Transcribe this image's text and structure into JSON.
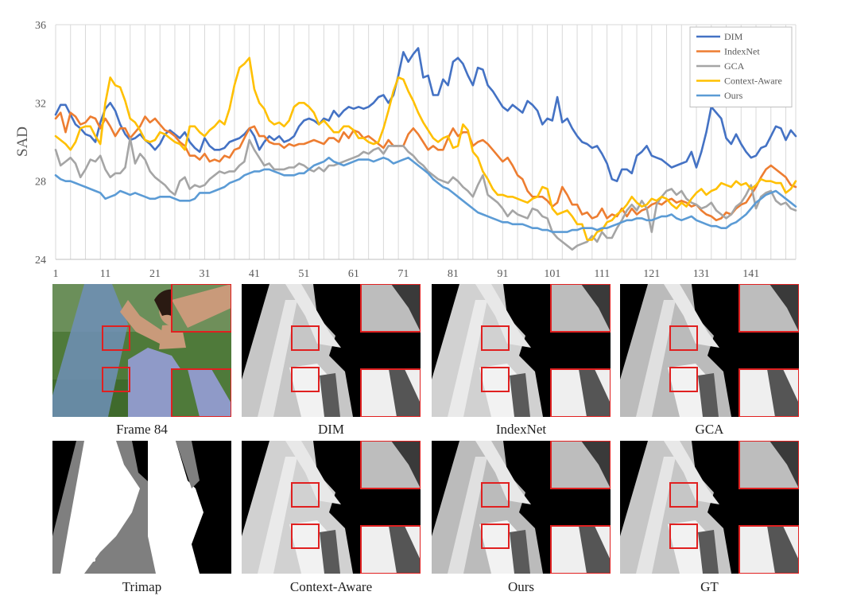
{
  "chart_data": {
    "type": "line",
    "ylabel": "SAD",
    "xlabel": "",
    "ylim": [
      24,
      36
    ],
    "y_ticks": [
      "24",
      "28",
      "32",
      "36"
    ],
    "x_ticks": [
      "1",
      "11",
      "21",
      "31",
      "41",
      "51",
      "61",
      "71",
      "81",
      "91",
      "101",
      "111",
      "121",
      "131",
      "141"
    ],
    "x_start": 1,
    "x_end": 150,
    "grid": "vertical",
    "legend_position": "top-right",
    "series": [
      {
        "name": "DIM",
        "color": "#4472C4",
        "values": [
          31.4,
          31.9,
          31.9,
          31.4,
          30.9,
          30.7,
          30.4,
          30.3,
          30.0,
          31.0,
          31.7,
          32.0,
          31.6,
          30.9,
          30.4,
          30.1,
          30.2,
          30.4,
          30.1,
          29.9,
          29.6,
          29.9,
          30.4,
          30.6,
          30.4,
          30.2,
          30.5,
          30.0,
          29.7,
          29.5,
          30.2,
          29.8,
          29.6,
          29.6,
          29.7,
          30.0,
          30.1,
          30.2,
          30.4,
          30.7,
          30.3,
          29.6,
          30.0,
          30.3,
          30.1,
          30.3,
          30.0,
          30.1,
          30.3,
          30.8,
          31.1,
          31.2,
          31.1,
          30.9,
          31.2,
          31.1,
          31.6,
          31.3,
          31.6,
          31.8,
          31.7,
          31.8,
          31.7,
          31.8,
          32.0,
          32.3,
          32.4,
          32.0,
          32.4,
          33.4,
          34.6,
          34.1,
          34.5,
          34.8,
          33.3,
          33.4,
          32.4,
          32.4,
          33.2,
          32.9,
          34.1,
          34.3,
          34.0,
          33.4,
          32.9,
          33.8,
          33.7,
          32.9,
          32.6,
          32.2,
          31.8,
          31.6,
          31.9,
          31.7,
          31.5,
          32.1,
          31.9,
          31.6,
          30.9,
          31.2,
          31.1,
          32.3,
          31.0,
          31.2,
          30.7,
          30.3,
          30.0,
          29.9,
          29.7,
          29.8,
          29.4,
          28.9,
          28.1,
          28.0,
          28.6,
          28.6,
          28.4,
          29.3,
          29.5,
          29.8,
          29.3,
          29.2,
          29.1,
          28.9,
          28.7,
          28.8,
          28.9,
          29.0,
          29.5,
          28.7,
          29.5,
          30.5,
          31.8,
          31.5,
          31.2,
          30.2,
          29.9,
          30.4,
          29.9,
          29.5,
          29.2,
          29.3,
          29.7,
          29.8,
          30.3,
          30.8,
          30.7,
          30.1,
          30.6,
          30.3
        ]
      },
      {
        "name": "IndexNet",
        "color": "#ED7D31",
        "values": [
          31.2,
          31.5,
          30.5,
          31.5,
          31.3,
          30.9,
          31.0,
          31.3,
          31.2,
          30.7,
          31.2,
          30.8,
          30.3,
          30.7,
          30.7,
          30.2,
          30.5,
          30.8,
          31.3,
          31.0,
          31.2,
          30.9,
          30.6,
          30.5,
          30.3,
          30.0,
          29.8,
          29.3,
          29.3,
          29.1,
          29.4,
          29.0,
          29.1,
          29.0,
          29.3,
          29.2,
          29.6,
          29.7,
          30.2,
          30.7,
          30.8,
          30.3,
          30.3,
          30.0,
          29.9,
          29.9,
          29.7,
          29.9,
          29.8,
          29.9,
          29.9,
          30.0,
          30.1,
          30.0,
          29.9,
          30.2,
          30.2,
          30.0,
          30.5,
          30.2,
          30.6,
          30.5,
          30.2,
          30.3,
          30.1,
          29.9,
          29.7,
          30.1,
          29.8,
          29.8,
          29.8,
          30.4,
          30.7,
          30.4,
          30.0,
          29.6,
          29.8,
          29.6,
          29.6,
          30.2,
          30.7,
          30.3,
          30.5,
          30.5,
          29.8,
          30.0,
          30.1,
          29.9,
          29.6,
          29.3,
          29.0,
          29.2,
          28.8,
          28.3,
          28.1,
          27.5,
          27.2,
          27.2,
          27.2,
          27.0,
          26.7,
          26.9,
          27.7,
          27.3,
          26.8,
          26.8,
          26.3,
          26.4,
          26.1,
          26.2,
          26.6,
          26.1,
          26.3,
          26.2,
          26.6,
          26.2,
          26.6,
          26.3,
          26.5,
          26.6,
          26.8,
          26.9,
          26.8,
          27.0,
          27.1,
          26.9,
          27.0,
          26.9,
          26.7,
          26.8,
          26.5,
          26.3,
          26.2,
          26.0,
          26.1,
          26.4,
          26.3,
          26.6,
          26.8,
          26.9,
          27.3,
          27.7,
          28.2,
          28.6,
          28.8,
          28.6,
          28.4,
          28.2,
          27.8,
          27.7
        ]
      },
      {
        "name": "GCA",
        "color": "#A5A5A5",
        "values": [
          29.6,
          28.8,
          29.0,
          29.2,
          28.9,
          28.2,
          28.6,
          29.1,
          29.0,
          29.3,
          28.6,
          28.2,
          28.4,
          28.4,
          28.7,
          30.2,
          28.9,
          29.4,
          29.1,
          28.5,
          28.2,
          28.0,
          27.8,
          27.5,
          27.3,
          28.0,
          28.2,
          27.6,
          27.8,
          27.7,
          27.8,
          28.1,
          28.3,
          28.5,
          28.4,
          28.5,
          28.5,
          28.8,
          29.0,
          30.1,
          29.6,
          29.2,
          28.8,
          28.9,
          28.6,
          28.6,
          28.6,
          28.7,
          28.7,
          28.9,
          28.8,
          28.6,
          28.5,
          28.7,
          28.5,
          28.8,
          28.8,
          28.9,
          29.0,
          29.1,
          29.2,
          29.3,
          29.5,
          29.4,
          29.6,
          29.7,
          29.4,
          29.8,
          29.8,
          29.8,
          29.8,
          29.5,
          29.3,
          29.0,
          28.8,
          28.5,
          28.3,
          28.1,
          28.0,
          27.9,
          28.2,
          28.0,
          27.7,
          27.5,
          27.2,
          27.8,
          28.3,
          27.3,
          27.1,
          26.9,
          26.6,
          26.2,
          26.5,
          26.3,
          26.2,
          26.1,
          26.6,
          26.5,
          26.2,
          26.1,
          25.4,
          25.1,
          24.9,
          24.7,
          24.5,
          24.7,
          24.8,
          24.9,
          25.2,
          24.9,
          25.4,
          25.1,
          25.1,
          25.6,
          26.0,
          26.5,
          26.8,
          26.5,
          27.0,
          26.6,
          25.4,
          26.8,
          27.2,
          27.5,
          27.6,
          27.3,
          27.5,
          27.1,
          26.9,
          26.8,
          26.6,
          26.7,
          26.9,
          26.5,
          26.3,
          26.1,
          26.3,
          26.7,
          26.9,
          27.3,
          27.8,
          26.6,
          27.2,
          27.4,
          27.5,
          27.0,
          26.8,
          26.9,
          26.6,
          26.5
        ]
      },
      {
        "name": "Context-Aware",
        "color": "#FFC000",
        "values": [
          30.3,
          30.1,
          29.9,
          29.6,
          30.0,
          30.7,
          30.8,
          30.8,
          30.3,
          29.9,
          32.0,
          33.3,
          32.9,
          32.8,
          32.1,
          31.2,
          31.0,
          30.6,
          30.1,
          30.0,
          30.1,
          30.5,
          30.4,
          30.2,
          30.0,
          29.9,
          29.6,
          30.8,
          30.8,
          30.5,
          30.3,
          30.6,
          30.8,
          31.1,
          30.9,
          31.7,
          32.9,
          33.8,
          34.0,
          34.3,
          32.7,
          32.0,
          31.7,
          31.1,
          30.9,
          31.0,
          30.8,
          31.1,
          31.8,
          32.0,
          32.0,
          31.8,
          31.5,
          30.9,
          31.1,
          30.8,
          30.5,
          30.5,
          30.8,
          30.8,
          30.6,
          30.2,
          30.2,
          30.0,
          29.9,
          30.0,
          30.7,
          31.6,
          32.6,
          33.3,
          33.2,
          32.6,
          32.1,
          31.5,
          31.0,
          30.6,
          30.2,
          30.0,
          30.2,
          30.3,
          29.7,
          29.8,
          30.9,
          30.6,
          29.5,
          29.2,
          28.5,
          28.1,
          27.6,
          27.3,
          27.3,
          27.2,
          27.2,
          27.1,
          27.0,
          26.9,
          27.1,
          27.2,
          27.7,
          27.6,
          26.6,
          26.3,
          26.4,
          26.5,
          26.2,
          25.8,
          25.8,
          25.0,
          25.0,
          25.4,
          25.5,
          25.9,
          26.0,
          26.3,
          26.5,
          26.8,
          27.2,
          26.9,
          26.7,
          26.8,
          27.1,
          27.0,
          27.2,
          27.1,
          26.8,
          26.6,
          26.9,
          26.7,
          27.1,
          27.4,
          27.6,
          27.3,
          27.5,
          27.6,
          27.9,
          27.8,
          27.7,
          28.0,
          27.8,
          27.9,
          27.6,
          27.8,
          28.1,
          28.0,
          28.0,
          27.9,
          27.9,
          27.4,
          27.6,
          28.0
        ]
      },
      {
        "name": "Ours",
        "color": "#5B9BD5",
        "values": [
          28.3,
          28.1,
          28.0,
          28.0,
          27.9,
          27.8,
          27.7,
          27.6,
          27.5,
          27.4,
          27.1,
          27.2,
          27.3,
          27.5,
          27.4,
          27.3,
          27.4,
          27.3,
          27.2,
          27.1,
          27.1,
          27.2,
          27.2,
          27.2,
          27.1,
          27.0,
          27.0,
          27.0,
          27.1,
          27.4,
          27.4,
          27.4,
          27.5,
          27.6,
          27.7,
          27.9,
          28.0,
          28.1,
          28.3,
          28.4,
          28.5,
          28.5,
          28.6,
          28.6,
          28.5,
          28.4,
          28.3,
          28.3,
          28.3,
          28.4,
          28.4,
          28.6,
          28.8,
          28.9,
          29.0,
          29.2,
          29.0,
          28.9,
          28.8,
          28.9,
          29.0,
          29.1,
          29.1,
          29.1,
          29.0,
          29.1,
          29.2,
          29.1,
          28.9,
          29.0,
          29.1,
          29.2,
          29.0,
          28.8,
          28.6,
          28.4,
          28.1,
          27.9,
          27.7,
          27.6,
          27.4,
          27.2,
          27.0,
          26.8,
          26.6,
          26.4,
          26.3,
          26.2,
          26.1,
          26.0,
          25.9,
          25.9,
          25.8,
          25.8,
          25.8,
          25.7,
          25.6,
          25.6,
          25.5,
          25.5,
          25.4,
          25.4,
          25.4,
          25.4,
          25.5,
          25.5,
          25.6,
          25.6,
          25.6,
          25.5,
          25.6,
          25.6,
          25.7,
          25.8,
          25.9,
          26.0,
          26.0,
          26.1,
          26.1,
          26.0,
          26.0,
          26.1,
          26.2,
          26.2,
          26.3,
          26.1,
          26.0,
          26.1,
          26.2,
          26.0,
          25.9,
          25.8,
          25.7,
          25.7,
          25.6,
          25.6,
          25.8,
          25.9,
          26.1,
          26.3,
          26.6,
          26.9,
          27.1,
          27.3,
          27.4,
          27.5,
          27.3,
          27.1,
          26.9,
          26.7
        ]
      }
    ]
  },
  "panels": [
    {
      "caption": "Frame 84",
      "kind": "frame"
    },
    {
      "caption": "DIM",
      "kind": "alpha"
    },
    {
      "caption": "IndexNet",
      "kind": "alpha"
    },
    {
      "caption": "GCA",
      "kind": "alpha"
    },
    {
      "caption": "Trimap",
      "kind": "trimap"
    },
    {
      "caption": "Context-Aware",
      "kind": "alpha"
    },
    {
      "caption": "Ours",
      "kind": "alpha"
    },
    {
      "caption": "GT",
      "kind": "alpha"
    }
  ],
  "colors": {
    "zoom_box": "#e02020",
    "trimap_unknown": "#7f7f7f",
    "axis_text": "#595959"
  }
}
